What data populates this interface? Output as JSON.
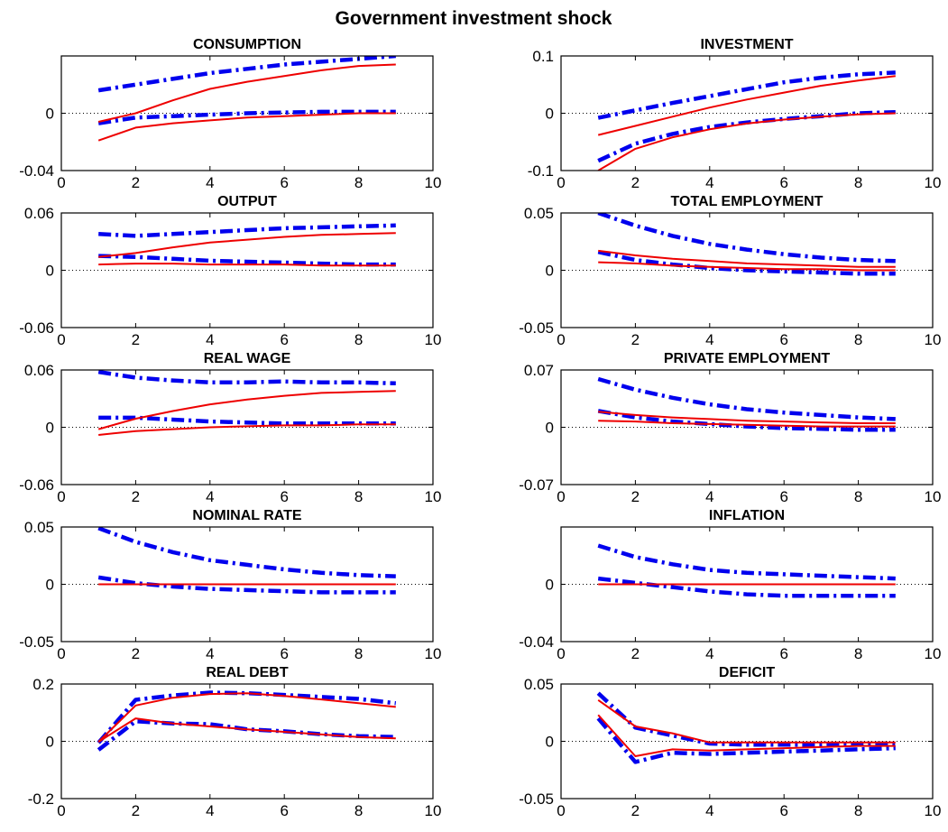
{
  "figure": {
    "title": "Government investment shock"
  },
  "style": {
    "band_color": "#0000ee",
    "irf_color": "#ee0000",
    "zero_line_color": "#000000"
  },
  "chart_data": [
    {
      "type": "line",
      "title": "CONSUMPTION",
      "xlim": [
        0,
        10
      ],
      "ylim": [
        -0.04,
        0.04
      ],
      "xticks": [
        "0",
        "2",
        "4",
        "6",
        "8",
        "10"
      ],
      "yticks": [
        "-0.04",
        "0"
      ],
      "ytick_values": [
        -0.04,
        0
      ],
      "x": [
        1,
        2,
        3,
        4,
        5,
        6,
        7,
        8,
        9
      ],
      "series": [
        {
          "role": "band",
          "values": [
            0.016,
            0.02,
            0.024,
            0.028,
            0.031,
            0.034,
            0.036,
            0.038,
            0.04
          ]
        },
        {
          "role": "band",
          "values": [
            -0.007,
            -0.003,
            -0.002,
            -0.001,
            0.0,
            0.0005,
            0.001,
            0.001,
            0.001
          ]
        },
        {
          "role": "irf",
          "values": [
            -0.006,
            0.0,
            0.009,
            0.017,
            0.022,
            0.026,
            0.03,
            0.033,
            0.034
          ]
        },
        {
          "role": "irf",
          "values": [
            -0.019,
            -0.01,
            -0.007,
            -0.005,
            -0.003,
            -0.002,
            -0.001,
            0.0,
            0.0
          ]
        }
      ]
    },
    {
      "type": "line",
      "title": "INVESTMENT",
      "xlim": [
        0,
        10
      ],
      "ylim": [
        -0.1,
        0.1
      ],
      "xticks": [
        "0",
        "2",
        "4",
        "6",
        "8",
        "10"
      ],
      "yticks": [
        "-0.1",
        "0",
        "0.1"
      ],
      "ytick_values": [
        -0.1,
        0,
        0.1
      ],
      "x": [
        1,
        2,
        3,
        4,
        5,
        6,
        7,
        8,
        9
      ],
      "series": [
        {
          "role": "band",
          "values": [
            -0.008,
            0.005,
            0.018,
            0.03,
            0.042,
            0.054,
            0.062,
            0.068,
            0.071
          ]
        },
        {
          "role": "band",
          "values": [
            -0.083,
            -0.053,
            -0.036,
            -0.024,
            -0.016,
            -0.01,
            -0.005,
            0.0,
            0.002
          ]
        },
        {
          "role": "irf",
          "values": [
            -0.038,
            -0.022,
            -0.006,
            0.01,
            0.024,
            0.036,
            0.048,
            0.057,
            0.065
          ]
        },
        {
          "role": "irf",
          "values": [
            -0.1,
            -0.062,
            -0.042,
            -0.028,
            -0.018,
            -0.011,
            -0.006,
            -0.002,
            0.0
          ]
        }
      ]
    },
    {
      "type": "line",
      "title": "OUTPUT",
      "xlim": [
        0,
        10
      ],
      "ylim": [
        -0.06,
        0.06
      ],
      "xticks": [
        "0",
        "2",
        "4",
        "6",
        "8",
        "10"
      ],
      "yticks": [
        "-0.06",
        "0",
        "0.06"
      ],
      "ytick_values": [
        -0.06,
        0,
        0.06
      ],
      "x": [
        1,
        2,
        3,
        4,
        5,
        6,
        7,
        8,
        9
      ],
      "series": [
        {
          "role": "band",
          "values": [
            0.038,
            0.036,
            0.038,
            0.04,
            0.042,
            0.044,
            0.045,
            0.046,
            0.047
          ]
        },
        {
          "role": "band",
          "values": [
            0.015,
            0.014,
            0.012,
            0.01,
            0.009,
            0.008,
            0.007,
            0.006,
            0.006
          ]
        },
        {
          "role": "irf",
          "values": [
            0.014,
            0.018,
            0.024,
            0.029,
            0.032,
            0.035,
            0.037,
            0.038,
            0.039
          ]
        },
        {
          "role": "irf",
          "values": [
            0.006,
            0.007,
            0.007,
            0.006,
            0.006,
            0.006,
            0.005,
            0.005,
            0.005
          ]
        }
      ]
    },
    {
      "type": "line",
      "title": "TOTAL EMPLOYMENT",
      "xlim": [
        0,
        10
      ],
      "ylim": [
        -0.05,
        0.05
      ],
      "xticks": [
        "0",
        "2",
        "4",
        "6",
        "8",
        "10"
      ],
      "yticks": [
        "-0.05",
        "0",
        "0.05"
      ],
      "ytick_values": [
        -0.05,
        0,
        0.05
      ],
      "x": [
        1,
        2,
        3,
        4,
        5,
        6,
        7,
        8,
        9
      ],
      "series": [
        {
          "role": "band",
          "values": [
            0.05,
            0.039,
            0.03,
            0.023,
            0.018,
            0.014,
            0.011,
            0.009,
            0.008
          ]
        },
        {
          "role": "band",
          "values": [
            0.016,
            0.009,
            0.005,
            0.002,
            0.0,
            -0.001,
            -0.002,
            -0.003,
            -0.003
          ]
        },
        {
          "role": "irf",
          "values": [
            0.017,
            0.013,
            0.01,
            0.008,
            0.006,
            0.005,
            0.004,
            0.003,
            0.003
          ]
        },
        {
          "role": "irf",
          "values": [
            0.007,
            0.006,
            0.004,
            0.003,
            0.002,
            0.001,
            0.001,
            0.0,
            0.0
          ]
        }
      ]
    },
    {
      "type": "line",
      "title": "REAL WAGE",
      "xlim": [
        0,
        10
      ],
      "ylim": [
        -0.06,
        0.06
      ],
      "xticks": [
        "0",
        "2",
        "4",
        "6",
        "8",
        "10"
      ],
      "yticks": [
        "-0.06",
        "0",
        "0.06"
      ],
      "ytick_values": [
        -0.06,
        0,
        0.06
      ],
      "x": [
        1,
        2,
        3,
        4,
        5,
        6,
        7,
        8,
        9
      ],
      "series": [
        {
          "role": "band",
          "values": [
            0.058,
            0.052,
            0.049,
            0.047,
            0.047,
            0.048,
            0.047,
            0.047,
            0.046
          ]
        },
        {
          "role": "band",
          "values": [
            0.01,
            0.01,
            0.008,
            0.006,
            0.005,
            0.004,
            0.004,
            0.004,
            0.004
          ]
        },
        {
          "role": "irf",
          "values": [
            -0.002,
            0.009,
            0.017,
            0.024,
            0.029,
            0.033,
            0.036,
            0.037,
            0.038
          ]
        },
        {
          "role": "irf",
          "values": [
            -0.008,
            -0.004,
            -0.002,
            0.0,
            0.001,
            0.002,
            0.002,
            0.003,
            0.003
          ]
        }
      ]
    },
    {
      "type": "line",
      "title": "PRIVATE EMPLOYMENT",
      "xlim": [
        0,
        10
      ],
      "ylim": [
        -0.07,
        0.07
      ],
      "xticks": [
        "0",
        "2",
        "4",
        "6",
        "8",
        "10"
      ],
      "yticks": [
        "-0.07",
        "0",
        "0.07"
      ],
      "ytick_values": [
        -0.07,
        0,
        0.07
      ],
      "x": [
        1,
        2,
        3,
        4,
        5,
        6,
        7,
        8,
        9
      ],
      "series": [
        {
          "role": "band",
          "values": [
            0.059,
            0.046,
            0.036,
            0.028,
            0.022,
            0.018,
            0.015,
            0.012,
            0.01
          ]
        },
        {
          "role": "band",
          "values": [
            0.02,
            0.012,
            0.007,
            0.004,
            0.001,
            -0.001,
            -0.002,
            -0.003,
            -0.003
          ]
        },
        {
          "role": "irf",
          "values": [
            0.019,
            0.015,
            0.012,
            0.01,
            0.008,
            0.007,
            0.006,
            0.005,
            0.005
          ]
        },
        {
          "role": "irf",
          "values": [
            0.008,
            0.007,
            0.005,
            0.004,
            0.003,
            0.002,
            0.001,
            0.001,
            0.001
          ]
        }
      ]
    },
    {
      "type": "line",
      "title": "NOMINAL RATE",
      "xlim": [
        0,
        10
      ],
      "ylim": [
        -0.05,
        0.05
      ],
      "xticks": [
        "0",
        "2",
        "4",
        "6",
        "8",
        "10"
      ],
      "yticks": [
        "-0.05",
        "0",
        "0.05"
      ],
      "ytick_values": [
        -0.05,
        0,
        0.05
      ],
      "x": [
        1,
        2,
        3,
        4,
        5,
        6,
        7,
        8,
        9
      ],
      "series": [
        {
          "role": "band",
          "values": [
            0.049,
            0.037,
            0.028,
            0.021,
            0.017,
            0.013,
            0.01,
            0.008,
            0.007
          ]
        },
        {
          "role": "band",
          "values": [
            0.006,
            0.001,
            -0.002,
            -0.004,
            -0.005,
            -0.006,
            -0.007,
            -0.007,
            -0.007
          ]
        },
        {
          "role": "irf",
          "values": [
            0.0,
            0.0,
            0.0,
            0.0,
            0.0,
            0.0,
            0.0,
            0.0,
            0.0
          ]
        }
      ]
    },
    {
      "type": "line",
      "title": "INFLATION",
      "xlim": [
        0,
        10
      ],
      "ylim": [
        -0.04,
        0.04
      ],
      "xticks": [
        "0",
        "2",
        "4",
        "6",
        "8",
        "10"
      ],
      "yticks": [
        "-0.04",
        "0"
      ],
      "ytick_values": [
        -0.04,
        0
      ],
      "x": [
        1,
        2,
        3,
        4,
        5,
        6,
        7,
        8,
        9
      ],
      "series": [
        {
          "role": "band",
          "values": [
            0.027,
            0.019,
            0.014,
            0.01,
            0.008,
            0.007,
            0.006,
            0.005,
            0.004
          ]
        },
        {
          "role": "band",
          "values": [
            0.004,
            0.001,
            -0.002,
            -0.005,
            -0.007,
            -0.008,
            -0.008,
            -0.008,
            -0.008
          ]
        },
        {
          "role": "irf",
          "values": [
            0.0,
            0.0,
            0.0,
            0.0,
            0.0,
            0.0,
            0.0,
            0.0,
            0.0
          ]
        }
      ]
    },
    {
      "type": "line",
      "title": "REAL DEBT",
      "xlim": [
        0,
        10
      ],
      "ylim": [
        -0.2,
        0.2
      ],
      "xticks": [
        "0",
        "2",
        "4",
        "6",
        "8",
        "10"
      ],
      "yticks": [
        "-0.2",
        "0",
        "0.2"
      ],
      "ytick_values": [
        -0.2,
        0,
        0.2
      ],
      "x": [
        1,
        2,
        3,
        4,
        5,
        6,
        7,
        8,
        9
      ],
      "series": [
        {
          "role": "band",
          "values": [
            -0.005,
            0.145,
            0.16,
            0.17,
            0.168,
            0.162,
            0.155,
            0.148,
            0.133
          ]
        },
        {
          "role": "band",
          "values": [
            -0.03,
            0.07,
            0.062,
            0.06,
            0.042,
            0.035,
            0.025,
            0.018,
            0.015
          ]
        },
        {
          "role": "irf",
          "values": [
            -0.002,
            0.125,
            0.152,
            0.165,
            0.168,
            0.158,
            0.146,
            0.133,
            0.12
          ]
        },
        {
          "role": "irf",
          "values": [
            -0.002,
            0.08,
            0.062,
            0.052,
            0.042,
            0.033,
            0.024,
            0.015,
            0.01
          ]
        }
      ]
    },
    {
      "type": "line",
      "title": "DEFICIT",
      "xlim": [
        0,
        10
      ],
      "ylim": [
        -0.05,
        0.05
      ],
      "xticks": [
        "0",
        "2",
        "4",
        "6",
        "8",
        "10"
      ],
      "yticks": [
        "-0.05",
        "0",
        "0.05"
      ],
      "ytick_values": [
        -0.05,
        0,
        0.05
      ],
      "x": [
        1,
        2,
        3,
        4,
        5,
        6,
        7,
        8,
        9
      ],
      "series": [
        {
          "role": "band",
          "values": [
            0.042,
            0.012,
            0.005,
            -0.002,
            -0.003,
            -0.003,
            -0.003,
            -0.002,
            -0.002
          ]
        },
        {
          "role": "band",
          "values": [
            0.02,
            -0.018,
            -0.01,
            -0.011,
            -0.01,
            -0.009,
            -0.008,
            -0.007,
            -0.006
          ]
        },
        {
          "role": "irf",
          "values": [
            0.036,
            0.013,
            0.007,
            -0.001,
            -0.001,
            -0.001,
            -0.001,
            -0.001,
            -0.001
          ]
        },
        {
          "role": "irf",
          "values": [
            0.023,
            -0.013,
            -0.007,
            -0.008,
            -0.007,
            -0.006,
            -0.005,
            -0.004,
            -0.004
          ]
        }
      ]
    }
  ]
}
